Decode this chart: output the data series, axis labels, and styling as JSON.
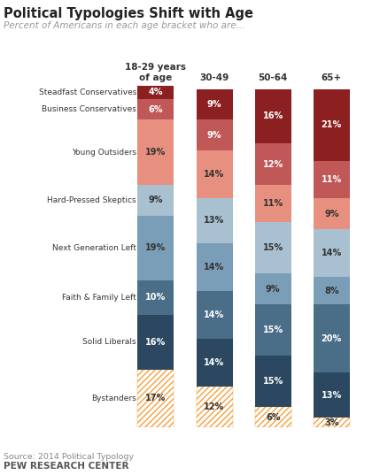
{
  "title": "Political Typologies Shift with Age",
  "subtitle": "Percent of Americans in each age bracket who are...",
  "source": "Source: 2014 Political Typology",
  "footer": "PEW RESEARCH CENTER",
  "age_groups": [
    "18-29 years\nof age",
    "30-49",
    "50-64",
    "65+"
  ],
  "categories": [
    "Steadfast Conservatives",
    "Business Conservatives",
    "Young Outsiders",
    "Hard-Pressed Skeptics",
    "Next Generation Left",
    "Faith & Family Left",
    "Solid Liberals",
    "Bystanders"
  ],
  "values": [
    [
      4,
      9,
      16,
      21
    ],
    [
      6,
      9,
      12,
      11
    ],
    [
      19,
      14,
      11,
      9
    ],
    [
      9,
      13,
      15,
      14
    ],
    [
      19,
      14,
      9,
      8
    ],
    [
      10,
      14,
      15,
      20
    ],
    [
      16,
      14,
      15,
      13
    ],
    [
      17,
      12,
      6,
      3
    ]
  ],
  "stack_colors": [
    "#F5A040",
    "#2B4860",
    "#4A6D88",
    "#7A9EB8",
    "#A8C0D0",
    "#E89080",
    "#C05858",
    "#8C2020"
  ],
  "text_colors": [
    "dark",
    "white",
    "white",
    "dark",
    "dark",
    "dark",
    "white",
    "white"
  ],
  "bar_width": 0.62
}
